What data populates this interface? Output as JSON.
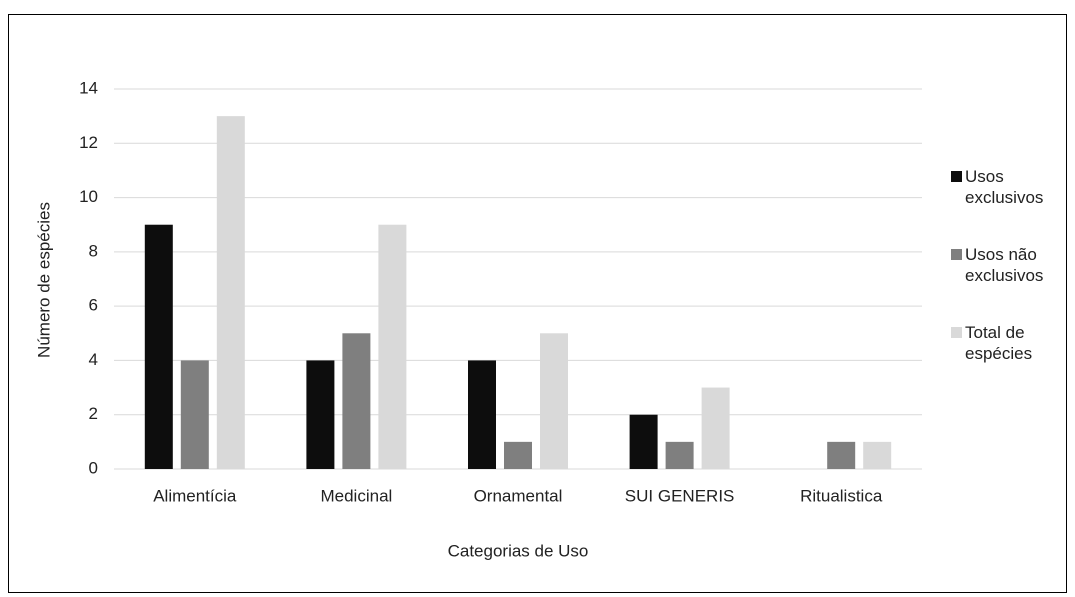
{
  "chart_data": {
    "type": "bar",
    "x_label": "Categorias de Uso",
    "y_label": "Número de espécies",
    "categories": [
      "Alimentícia",
      "Medicinal",
      "Ornamental",
      "SUI GENERIS",
      "Ritualistica"
    ],
    "series": [
      {
        "name": "Usos exclusivos",
        "color": "#0d0d0d",
        "values": [
          9,
          4,
          4,
          2,
          0
        ]
      },
      {
        "name": "Usos não exclusivos",
        "color": "#7f7f7f",
        "values": [
          4,
          5,
          1,
          1,
          1
        ]
      },
      {
        "name": "Total de espécies",
        "color": "#d9d9d9",
        "values": [
          13,
          9,
          5,
          3,
          1
        ]
      }
    ],
    "ylim": [
      0,
      14
    ],
    "yticks": [
      0,
      2,
      4,
      6,
      8,
      10,
      12,
      14
    ],
    "grid": true,
    "legend": "right"
  }
}
